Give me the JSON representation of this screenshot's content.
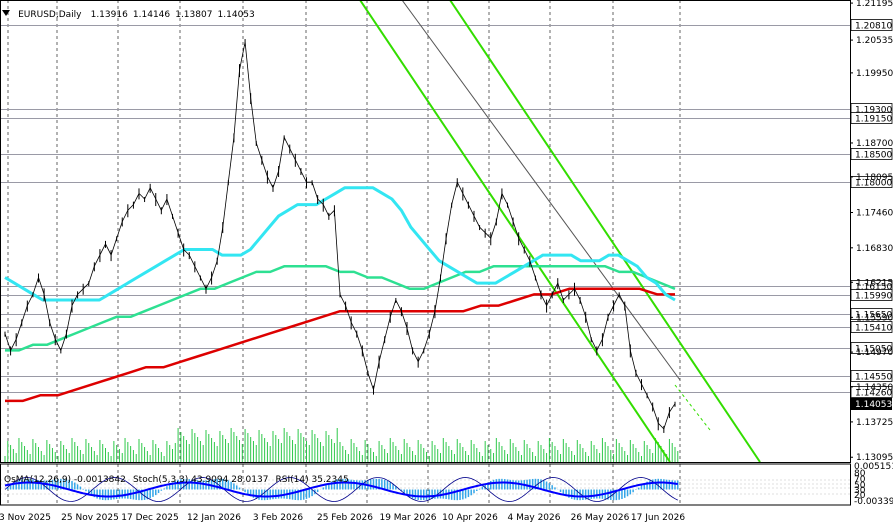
{
  "chart_data": {
    "type": "line",
    "symbol_header": "EURUSD,Daily",
    "ohlc": {
      "open": "1.13916",
      "high": "1.14146",
      "low": "1.13807",
      "close": "1.14053"
    },
    "current_price": "1.14053",
    "ylim": [
      1.1301,
      1.2125
    ],
    "x_tick_labels": [
      "3 Nov 2025",
      "25 Nov 2025",
      "17 Dec 2025",
      "12 Jan 2026",
      "3 Feb 2026",
      "25 Feb 2026",
      "19 Mar 2026",
      "10 Apr 2026",
      "4 May 2026",
      "26 May 2026",
      "17 Jun 2026"
    ],
    "y_tick_labels": [
      "1.21195",
      "1.20535",
      "1.19950",
      "1.18700",
      "1.18095",
      "1.17460",
      "1.16830",
      "1.16215",
      "1.15590",
      "1.14970",
      "1.14350",
      "1.13725",
      "1.13095"
    ],
    "level_labels": [
      {
        "label": "1.20810",
        "value": 1.2081
      },
      {
        "label": "1.19300",
        "value": 1.193
      },
      {
        "label": "1.19150",
        "value": 1.1915
      },
      {
        "label": "1.18500",
        "value": 1.185
      },
      {
        "label": "1.18000",
        "value": 1.18
      },
      {
        "label": "1.16150",
        "value": 1.1615
      },
      {
        "label": "1.15990",
        "value": 1.1599
      },
      {
        "label": "1.15650",
        "value": 1.1565
      },
      {
        "label": "1.15410",
        "value": 1.1541
      },
      {
        "label": "1.15050",
        "value": 1.1505
      },
      {
        "label": "1.14550",
        "value": 1.1455
      },
      {
        "label": "1.14260",
        "value": 1.1426
      }
    ],
    "price_series": [
      1.153,
      1.15,
      1.152,
      1.155,
      1.158,
      1.16,
      1.163,
      1.16,
      1.155,
      1.152,
      1.15,
      1.153,
      1.158,
      1.16,
      1.161,
      1.162,
      1.165,
      1.167,
      1.169,
      1.167,
      1.17,
      1.173,
      1.175,
      1.176,
      1.178,
      1.177,
      1.179,
      1.177,
      1.175,
      1.177,
      1.174,
      1.171,
      1.168,
      1.167,
      1.165,
      1.163,
      1.161,
      1.163,
      1.166,
      1.172,
      1.18,
      1.188,
      1.2,
      1.205,
      1.195,
      1.187,
      1.184,
      1.181,
      1.179,
      1.182,
      1.188,
      1.186,
      1.184,
      1.182,
      1.18,
      1.18,
      1.177,
      1.176,
      1.174,
      1.175,
      1.16,
      1.158,
      1.155,
      1.153,
      1.15,
      1.146,
      1.143,
      1.148,
      1.152,
      1.156,
      1.159,
      1.157,
      1.154,
      1.15,
      1.148,
      1.15,
      1.153,
      1.157,
      1.163,
      1.17,
      1.176,
      1.18,
      1.178,
      1.176,
      1.174,
      1.172,
      1.171,
      1.17,
      1.173,
      1.178,
      1.176,
      1.173,
      1.17,
      1.168,
      1.166,
      1.163,
      1.16,
      1.158,
      1.16,
      1.162,
      1.159,
      1.16,
      1.161,
      1.159,
      1.156,
      1.152,
      1.15,
      1.152,
      1.156,
      1.158,
      1.16,
      1.158,
      1.15,
      1.146,
      1.144,
      1.142,
      1.14,
      1.137,
      1.136,
      1.139,
      1.1405
    ],
    "ma_cyan": [
      1.163,
      1.162,
      1.161,
      1.16,
      1.159,
      1.159,
      1.159,
      1.159,
      1.159,
      1.159,
      1.159,
      1.16,
      1.161,
      1.162,
      1.163,
      1.164,
      1.165,
      1.166,
      1.167,
      1.168,
      1.168,
      1.168,
      1.168,
      1.167,
      1.167,
      1.167,
      1.168,
      1.17,
      1.172,
      1.174,
      1.175,
      1.176,
      1.176,
      1.176,
      1.177,
      1.178,
      1.179,
      1.179,
      1.179,
      1.179,
      1.178,
      1.177,
      1.175,
      1.172,
      1.17,
      1.168,
      1.166,
      1.165,
      1.164,
      1.163,
      1.162,
      1.162,
      1.162,
      1.163,
      1.164,
      1.165,
      1.166,
      1.167,
      1.167,
      1.167,
      1.167,
      1.166,
      1.166,
      1.166,
      1.167,
      1.167,
      1.166,
      1.165,
      1.163,
      1.162,
      1.16,
      1.159
    ],
    "ma_green": [
      1.15,
      1.15,
      1.151,
      1.151,
      1.152,
      1.153,
      1.154,
      1.155,
      1.156,
      1.156,
      1.157,
      1.158,
      1.159,
      1.16,
      1.161,
      1.161,
      1.162,
      1.163,
      1.164,
      1.164,
      1.165,
      1.165,
      1.165,
      1.165,
      1.164,
      1.164,
      1.163,
      1.163,
      1.162,
      1.161,
      1.161,
      1.162,
      1.163,
      1.164,
      1.164,
      1.165,
      1.165,
      1.165,
      1.165,
      1.165,
      1.165,
      1.165,
      1.165,
      1.165,
      1.164,
      1.164,
      1.163,
      1.162,
      1.161
    ],
    "ma_red": [
      1.141,
      1.141,
      1.142,
      1.142,
      1.143,
      1.144,
      1.145,
      1.146,
      1.147,
      1.147,
      1.148,
      1.149,
      1.15,
      1.151,
      1.152,
      1.153,
      1.154,
      1.155,
      1.156,
      1.157,
      1.157,
      1.157,
      1.157,
      1.157,
      1.157,
      1.157,
      1.157,
      1.158,
      1.158,
      1.159,
      1.16,
      1.16,
      1.161,
      1.161,
      1.161,
      1.161,
      1.161,
      1.16,
      1.16
    ],
    "indicator_labels": {
      "osma": "OsMA(12,26,9) -0.0013842",
      "stoch": "Stoch(5,3,3) 43.9094 28.0137",
      "rsi": "RSI(14) 35.2345"
    },
    "sub_y_labels": [
      "0.005151",
      "80",
      "70",
      "50",
      "30",
      "20",
      "-0.00339"
    ],
    "colors": {
      "cyan_ma": "#33e6f2",
      "green_ma": "#2ee092",
      "red_ma": "#dd0000",
      "channel": "#33dd00",
      "trend": "#555555",
      "osma_bars": "#33a6e8",
      "stoch_main": "#00008b",
      "rsi": "#0000ff",
      "level_lines": "#9a9aa6"
    }
  }
}
